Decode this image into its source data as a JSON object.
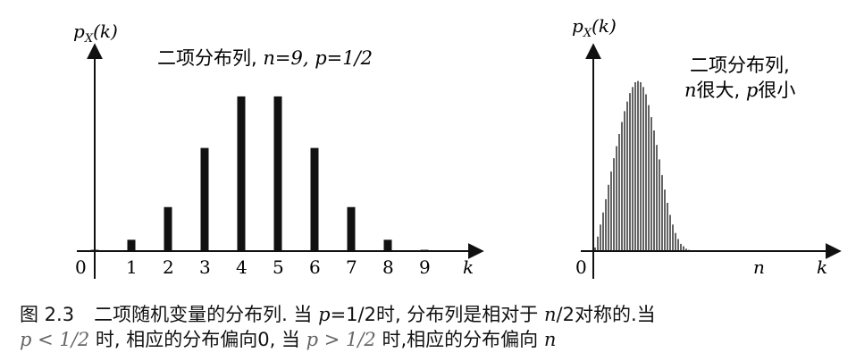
{
  "chart_data": [
    {
      "type": "bar",
      "title": "二项分布列, n=9, p=1/2",
      "ylabel": "p_X(k)",
      "xlabel": "k",
      "categories": [
        "0",
        "1",
        "2",
        "3",
        "4",
        "5",
        "6",
        "7",
        "8",
        "9"
      ],
      "values": [
        0.002,
        0.018,
        0.07,
        0.164,
        0.246,
        0.246,
        0.164,
        0.07,
        0.018,
        0.002
      ],
      "ylim": [
        0,
        0.27
      ]
    },
    {
      "type": "bar",
      "title": "二项分布列, n很大, p很小",
      "ylabel": "p_X(k)",
      "xlabel": "k",
      "tick_labels": [
        "0",
        "n"
      ],
      "values": [
        0.003,
        0.012,
        0.022,
        0.032,
        0.043,
        0.055,
        0.066,
        0.077,
        0.087,
        0.097,
        0.107,
        0.116,
        0.124,
        0.131,
        0.136,
        0.14,
        0.141,
        0.14,
        0.136,
        0.13,
        0.121,
        0.111,
        0.1,
        0.088,
        0.076,
        0.063,
        0.051,
        0.04,
        0.03,
        0.022,
        0.015,
        0.01,
        0.006,
        0.004,
        0.002,
        0.001
      ],
      "ylim": [
        0,
        0.2
      ]
    }
  ],
  "figure": {
    "left": {
      "ylabel_main": "p",
      "ylabel_sub": "X",
      "ylabel_rest": "(k)",
      "title_cn": "二项分布列, ",
      "title_math": "n=9, p=1/2",
      "xlabel": "k"
    },
    "right": {
      "ylabel_main": "p",
      "ylabel_sub": "X",
      "ylabel_rest": "(k)",
      "title_line1": "二项分布列,",
      "title_line2_n": "n",
      "title_line2_a": "很大, ",
      "title_line2_p": "p",
      "title_line2_b": "很小",
      "tick0": "0",
      "tickn": "n",
      "xlabel": "k"
    }
  },
  "caption": {
    "label": "图 2.3",
    "l1a": "二项随机变量的分布列. 当 ",
    "l1_math1": "p",
    "l1b": "=1/2时, 分布列是相对于 ",
    "l1_math2": "n",
    "l1c": "/2对称的.当",
    "l2_math1": "p < 1/2",
    "l2a": " 时, 相应的分布偏向0, 当 ",
    "l2_math2": "p > 1/2",
    "l2b": " 时,相应的分布偏向 ",
    "l2_math3": "n"
  }
}
